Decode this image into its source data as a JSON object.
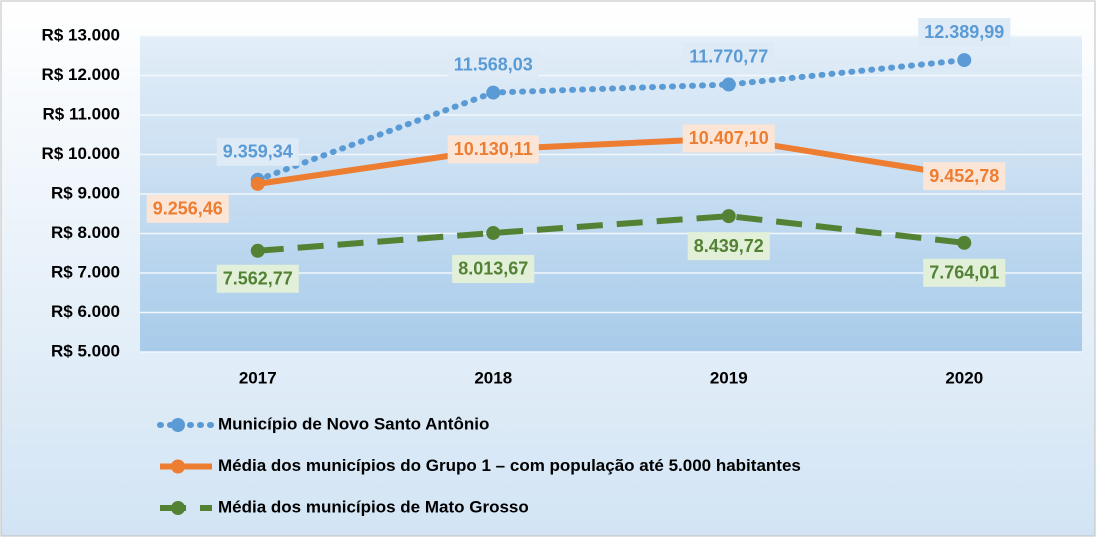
{
  "chart_data": {
    "type": "line",
    "categories": [
      "2017",
      "2018",
      "2019",
      "2020"
    ],
    "series": [
      {
        "name": "Município de Novo Santo Antônio",
        "color": "#5b9bd5",
        "dash": "dotted",
        "values": [
          9359.34,
          11568.03,
          11770.77,
          12389.99
        ],
        "value_labels": [
          "9.359,34",
          "11.568,03",
          "11.770,77",
          "12.389,99"
        ]
      },
      {
        "name": "Média dos municípios do Grupo 1 – com população até 5.000 habitantes",
        "color": "#ed7d31",
        "dash": "solid",
        "values": [
          9256.46,
          10130.11,
          10407.1,
          9452.78
        ],
        "value_labels": [
          "9.256,46",
          "10.130,11",
          "10.407,10",
          "9.452,78"
        ]
      },
      {
        "name": "Média dos municípios de Mato Grosso",
        "color": "#548235",
        "dash": "dashed",
        "values": [
          7562.77,
          8013.67,
          8439.72,
          7764.01
        ],
        "value_labels": [
          "7.562,77",
          "8.013,67",
          "8.439,72",
          "7.764,01"
        ]
      }
    ],
    "ylim": [
      5000,
      13000
    ],
    "yticks": [
      {
        "value": 5000,
        "label": "R$ 5.000"
      },
      {
        "value": 6000,
        "label": "R$ 6.000"
      },
      {
        "value": 7000,
        "label": "R$ 7.000"
      },
      {
        "value": 8000,
        "label": "R$ 8.000"
      },
      {
        "value": 9000,
        "label": "R$ 9.000"
      },
      {
        "value": 10000,
        "label": "R$ 10.000"
      },
      {
        "value": 11000,
        "label": "R$ 11.000"
      },
      {
        "value": 12000,
        "label": "R$ 12.000"
      },
      {
        "value": 13000,
        "label": "R$ 13.000"
      }
    ],
    "grid": true,
    "legend": "bottom"
  }
}
